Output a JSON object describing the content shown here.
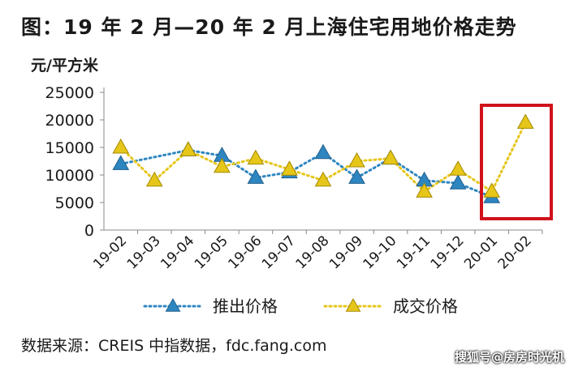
{
  "title": "图：19 年 2 月—20 年 2 月上海住宅用地价格走势",
  "source": "数据来源：CREIS 中指数据，fdc.fang.com",
  "watermark": "搜狐号@房房时光机",
  "chart_data": {
    "type": "line",
    "title": "",
    "ylabel": "元/平方米",
    "xlabel": "",
    "ylim": [
      0,
      25000
    ],
    "yticks": [
      0,
      5000,
      10000,
      15000,
      20000,
      25000
    ],
    "categories": [
      "19-02",
      "19-03",
      "19-04",
      "19-05",
      "19-06",
      "19-07",
      "19-08",
      "19-09",
      "19-10",
      "19-11",
      "19-12",
      "20-01",
      "20-02"
    ],
    "series": [
      {
        "name": "推出价格",
        "color": "#2e86c1",
        "marker": "triangle",
        "line": "dotted",
        "values": [
          12000,
          null,
          14500,
          13500,
          9500,
          10500,
          14000,
          9500,
          13000,
          9000,
          8500,
          6000,
          null
        ]
      },
      {
        "name": "成交价格",
        "color": "#e6c619",
        "marker": "triangle",
        "line": "dotted",
        "values": [
          15000,
          9000,
          14500,
          11500,
          13000,
          11000,
          9000,
          12500,
          13000,
          7000,
          11000,
          7000,
          19500
        ]
      }
    ],
    "legend_position": "bottom",
    "grid": false,
    "highlight_box_color": "#d0121b"
  }
}
